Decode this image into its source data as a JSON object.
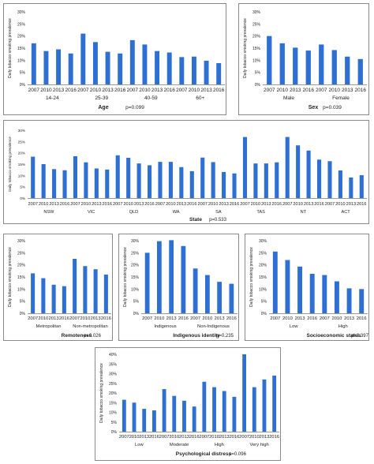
{
  "colors": {
    "bar": "#2e6fd3",
    "axis": "#9a9a9a",
    "text": "#222222",
    "border": "#8a8a8a"
  },
  "chart_data": [
    {
      "id": "age",
      "type": "bar",
      "ylabel": "Daily tobacco smoking prevalence",
      "ylim": [
        0,
        30
      ],
      "yticks": [
        "0%",
        "5%",
        "10%",
        "15%",
        "20%",
        "25%",
        "30%"
      ],
      "years": [
        "2007",
        "2010",
        "2013",
        "2016"
      ],
      "groups": [
        {
          "label": "14-24",
          "values": [
            17,
            13.8,
            14.5,
            12.8
          ]
        },
        {
          "label": "25-39",
          "values": [
            21,
            17.5,
            13.5,
            12.8
          ]
        },
        {
          "label": "40-59",
          "values": [
            18.3,
            16.5,
            13.8,
            13.2
          ]
        },
        {
          "label": "60+",
          "values": [
            11.3,
            11.5,
            9.8,
            8.8
          ]
        }
      ],
      "title": "Age",
      "pvalue": "p=0.099"
    },
    {
      "id": "sex",
      "type": "bar",
      "ylabel": "Daily tobacco smoking prevalence",
      "ylim": [
        0,
        30
      ],
      "yticks": [
        "0%",
        "5%",
        "10%",
        "15%",
        "20%",
        "25%",
        "30%"
      ],
      "years": [
        "2007",
        "2010",
        "2013",
        "2016"
      ],
      "groups": [
        {
          "label": "Male",
          "values": [
            20,
            17,
            15.2,
            14
          ]
        },
        {
          "label": "Female",
          "values": [
            16.5,
            14.2,
            11.5,
            10.5
          ]
        }
      ],
      "title": "Sex",
      "pvalue": "p=0.039"
    },
    {
      "id": "state",
      "type": "bar",
      "ylabel": "Daily tobacco smoking prevalence",
      "ylim": [
        0,
        30
      ],
      "yticks": [
        "0%",
        "5%",
        "10%",
        "15%",
        "20%",
        "25%",
        "30%"
      ],
      "years": [
        "2007",
        "2010",
        "2013",
        "2016"
      ],
      "groups": [
        {
          "label": "NSW",
          "values": [
            18.3,
            15,
            12.8,
            12.3
          ]
        },
        {
          "label": "VIC",
          "values": [
            18.5,
            15.8,
            13.1,
            12.6
          ]
        },
        {
          "label": "QLD",
          "values": [
            18.9,
            17.8,
            15.3,
            14.5
          ]
        },
        {
          "label": "WA",
          "values": [
            16,
            16,
            13.7,
            11.9
          ]
        },
        {
          "label": "SA",
          "values": [
            17.9,
            15.9,
            11.5,
            10.9
          ]
        },
        {
          "label": "TAS",
          "values": [
            27,
            15.3,
            15.3,
            15.8
          ]
        },
        {
          "label": "NT",
          "values": [
            27,
            23.3,
            21,
            17
          ]
        },
        {
          "label": "ACT",
          "values": [
            16.3,
            12.2,
            9.1,
            10.1
          ]
        }
      ],
      "title": "State",
      "pvalue": "p=0.533"
    },
    {
      "id": "remoteness",
      "type": "bar",
      "ylabel": "Daily tobacco smoking prevalence",
      "ylim": [
        0,
        30
      ],
      "yticks": [
        "0%",
        "5%",
        "10%",
        "15%",
        "20%",
        "25%",
        "30%"
      ],
      "years": [
        "2007",
        "2010",
        "2013",
        "2016"
      ],
      "groups": [
        {
          "label": "Metropolitan",
          "values": [
            16.5,
            14.5,
            11.8,
            11.2
          ]
        },
        {
          "label": "Non-metropolitan",
          "values": [
            22.5,
            19.5,
            18.2,
            16
          ]
        }
      ],
      "title": "Remoteness",
      "pvalue": "p=0.026"
    },
    {
      "id": "indigenous",
      "type": "bar",
      "ylabel": "Daily tobacco smoking prevalence",
      "ylim": [
        0,
        30
      ],
      "yticks": [
        "0%",
        "5%",
        "10%",
        "15%",
        "20%",
        "25%",
        "30%"
      ],
      "years": [
        "2007",
        "2010",
        "2013",
        "2016"
      ],
      "groups": [
        {
          "label": "Indigenous",
          "values": [
            25,
            29.8,
            30.2,
            27.8
          ]
        },
        {
          "label": "Non-Indigenous",
          "values": [
            18.5,
            15.8,
            13,
            12.2
          ]
        }
      ],
      "title": "Indigenous identity",
      "pvalue": "p=0.235"
    },
    {
      "id": "socioeconomic",
      "type": "bar",
      "ylabel": "Daily tobacco smoking prevalence",
      "ylim": [
        0,
        30
      ],
      "yticks": [
        "0%",
        "5%",
        "10%",
        "15%",
        "20%",
        "25%",
        "30%"
      ],
      "years": [
        "2007",
        "2010",
        "2013",
        "2016"
      ],
      "groups": [
        {
          "label": "Low",
          "values": [
            25.5,
            22,
            19.3,
            16.3
          ]
        },
        {
          "label": "High",
          "values": [
            15.8,
            13.2,
            10.3,
            10
          ]
        }
      ],
      "title": "Socioeconomic status",
      "pvalue": "p=0.397"
    },
    {
      "id": "distress",
      "type": "bar",
      "ylabel": "Daily tobacco smoking prevalence",
      "ylim": [
        0,
        40
      ],
      "yticks": [
        "0%",
        "5%",
        "10%",
        "15%",
        "20%",
        "25%",
        "30%",
        "35%",
        "40%"
      ],
      "years": [
        "2007",
        "2010",
        "2013",
        "2016"
      ],
      "groups": [
        {
          "label": "Low",
          "values": [
            16.5,
            15,
            11.8,
            11
          ]
        },
        {
          "label": "Moderate",
          "values": [
            22,
            18.5,
            16,
            13
          ]
        },
        {
          "label": "High",
          "values": [
            25.8,
            23,
            21,
            18
          ]
        },
        {
          "label": "Very high",
          "values": [
            40,
            23,
            27,
            29
          ]
        }
      ],
      "title": "Psychological distress",
      "pvalue": "p=0.096"
    }
  ]
}
